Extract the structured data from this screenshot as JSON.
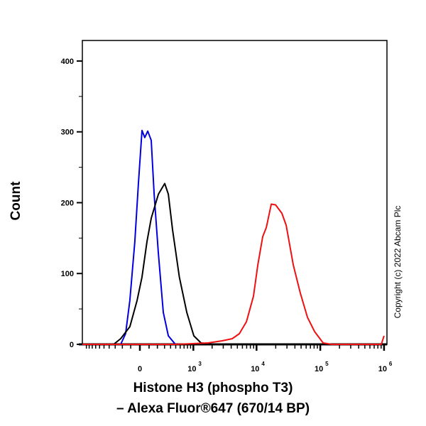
{
  "chart_data": {
    "type": "line",
    "title": "",
    "xlabel_line1": "Histone H3 (phospho T3)",
    "xlabel_line2": "– Alexa Fluor®647 (670/14 BP)",
    "ylabel": "Count",
    "x_scale": "biexponential",
    "xlim": [
      -1160,
      1000000
    ],
    "ylim": [
      0,
      429
    ],
    "x_ticks": [
      {
        "value": 0,
        "base": "0",
        "exp": ""
      },
      {
        "value": 1000,
        "base": "10",
        "exp": "3"
      },
      {
        "value": 10000,
        "base": "10",
        "exp": "4"
      },
      {
        "value": 100000,
        "base": "10",
        "exp": "5"
      },
      {
        "value": 1000000,
        "base": "10",
        "exp": "6"
      }
    ],
    "y_ticks": [
      0,
      100,
      200,
      300,
      400
    ],
    "grid": false,
    "legend": "none",
    "series": [
      {
        "color": "#0000dd",
        "points": [
          [
            -222,
            0
          ],
          [
            -159,
            15
          ],
          [
            -109,
            62
          ],
          [
            -54,
            145
          ],
          [
            -15,
            228
          ],
          [
            23,
            302
          ],
          [
            53,
            292
          ],
          [
            85,
            301
          ],
          [
            125,
            288
          ],
          [
            159,
            212
          ],
          [
            213,
            128
          ],
          [
            281,
            45
          ],
          [
            361,
            12
          ],
          [
            493,
            0
          ]
        ]
      },
      {
        "color": "#000000",
        "points": [
          [
            -325,
            0
          ],
          [
            -222,
            8
          ],
          [
            -109,
            25
          ],
          [
            -30,
            62
          ],
          [
            23,
            95
          ],
          [
            77,
            145
          ],
          [
            125,
            178
          ],
          [
            213,
            212
          ],
          [
            303,
            227
          ],
          [
            361,
            212
          ],
          [
            436,
            162
          ],
          [
            580,
            95
          ],
          [
            778,
            45
          ],
          [
            1018,
            12
          ],
          [
            1329,
            2
          ],
          [
            2069,
            0
          ]
        ]
      },
      {
        "color": "#ee1111",
        "points": [
          [
            -1160,
            0
          ],
          [
            493,
            0
          ],
          [
            1729,
            2
          ],
          [
            2893,
            5
          ],
          [
            4152,
            8
          ],
          [
            5366,
            15
          ],
          [
            6935,
            32
          ],
          [
            8960,
            68
          ],
          [
            10460,
            112
          ],
          [
            12510,
            152
          ],
          [
            14230,
            165
          ],
          [
            17020,
            198
          ],
          [
            19860,
            197
          ],
          [
            25000,
            185
          ],
          [
            29180,
            168
          ],
          [
            37700,
            112
          ],
          [
            48750,
            72
          ],
          [
            63000,
            38
          ],
          [
            81400,
            18
          ],
          [
            110700,
            2
          ],
          [
            150600,
            0
          ],
          [
            906000,
            0
          ],
          [
            1000000,
            12
          ]
        ]
      }
    ]
  },
  "copyright": "Copyright (c) 2022 Abcam Plc"
}
